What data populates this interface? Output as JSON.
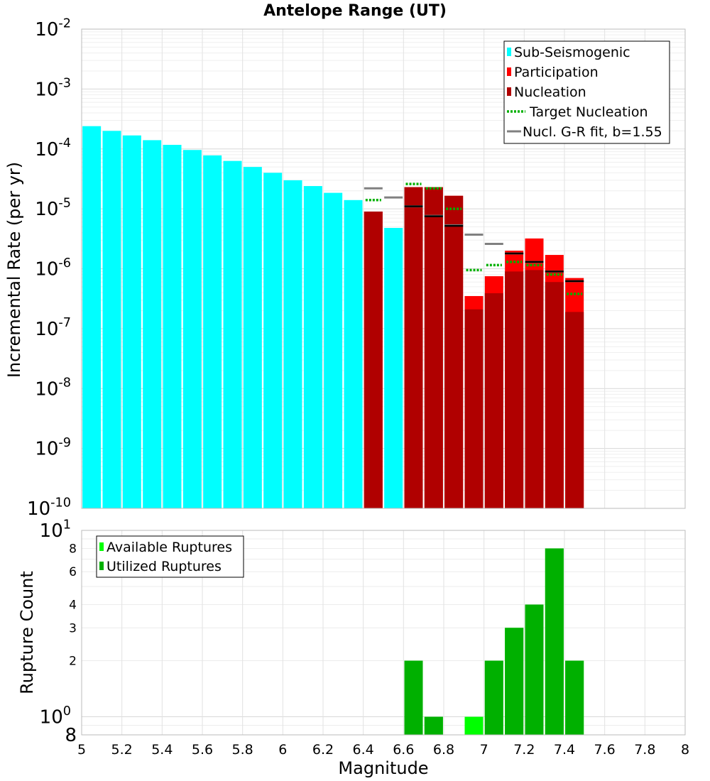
{
  "chart_data": [
    {
      "type": "bar",
      "title": "Antelope Range (UT)",
      "ylabel": "Incremental Rate (per yr)",
      "xlabel": "",
      "xlim": [
        5,
        8
      ],
      "ylim": [
        1e-10,
        0.01
      ],
      "y_scale": "log",
      "grid": true,
      "legend_position": "top-right",
      "y_ticks": [
        {
          "base": "10",
          "exp": "-2"
        },
        {
          "base": "10",
          "exp": "-3"
        },
        {
          "base": "10",
          "exp": "-4"
        },
        {
          "base": "10",
          "exp": "-5"
        },
        {
          "base": "10",
          "exp": "-6"
        },
        {
          "base": "10",
          "exp": "-7"
        },
        {
          "base": "10",
          "exp": "-8"
        },
        {
          "base": "10",
          "exp": "-9"
        },
        {
          "base": "10",
          "exp": "-10"
        }
      ],
      "legend": [
        {
          "label": "Sub-Seismogenic",
          "kind": "bar",
          "color": "#00ffff"
        },
        {
          "label": "Participation",
          "kind": "bar",
          "color": "#ff0000"
        },
        {
          "label": "Nucleation",
          "kind": "bar",
          "color": "#b00000"
        },
        {
          "label": "Target Nucleation",
          "kind": "dotted",
          "color": "#00b000"
        },
        {
          "label": "Nucl. G-R fit, b=1.55",
          "kind": "line",
          "color": "#808080"
        }
      ],
      "series": [
        {
          "name": "Sub-Seismogenic",
          "color": "#00ffff",
          "x": [
            5.05,
            5.15,
            5.25,
            5.35,
            5.45,
            5.55,
            5.65,
            5.75,
            5.85,
            5.95,
            6.05,
            6.15,
            6.25,
            6.35,
            6.55
          ],
          "values": [
            0.00024,
            0.0002,
            0.000168,
            0.00014,
            0.000117,
            9.6e-05,
            7.8e-05,
            6.3e-05,
            5e-05,
            4e-05,
            3e-05,
            2.4e-05,
            1.85e-05,
            1.4e-05,
            4.8e-06
          ]
        },
        {
          "name": "Participation",
          "color": "#ff0000",
          "x": [
            6.45,
            6.65,
            6.75,
            6.85,
            6.95,
            7.05,
            7.15,
            7.25,
            7.35,
            7.45
          ],
          "values": [
            9e-06,
            2.3e-05,
            2.3e-05,
            1.65e-05,
            3.5e-07,
            7.5e-07,
            2e-06,
            3.2e-06,
            1.7e-06,
            7e-07
          ]
        },
        {
          "name": "Nucleation",
          "color": "#b00000",
          "x": [
            6.45,
            6.65,
            6.75,
            6.85,
            6.95,
            7.05,
            7.15,
            7.25,
            7.35,
            7.45
          ],
          "values": [
            9e-06,
            2.3e-05,
            2.3e-05,
            1.65e-05,
            2.1e-07,
            3.9e-07,
            9e-07,
            9.5e-07,
            6e-07,
            1.9e-07
          ]
        },
        {
          "name": "Target Nucleation",
          "color": "#00b000",
          "x": [
            6.45,
            6.65,
            6.75,
            6.85,
            6.95,
            7.05,
            7.15,
            7.25,
            7.35,
            7.45
          ],
          "values": [
            1.4e-05,
            2.6e-05,
            2.2e-05,
            1e-05,
            9.5e-07,
            1.15e-06,
            1.3e-06,
            1.15e-06,
            8e-07,
            3.8e-07
          ]
        },
        {
          "name": "Nucl. G-R fit, b=1.55",
          "color": "#808080",
          "x": [
            6.45,
            6.55,
            6.65,
            6.75,
            6.85,
            6.95,
            7.05,
            7.15,
            7.25,
            7.35,
            7.45
          ],
          "values": [
            2.2e-05,
            1.55e-05,
            1.1e-05,
            7.6e-06,
            5.3e-06,
            3.7e-06,
            2.6e-06,
            1.8e-06,
            1.3e-06,
            9e-07,
            6.2e-07
          ]
        },
        {
          "name": "",
          "color": "#000000",
          "x": [
            6.65,
            6.75,
            6.85,
            7.15,
            7.25,
            7.35,
            7.45
          ],
          "values": [
            1.1e-05,
            7.5e-06,
            5.2e-06,
            1.8e-06,
            1.3e-06,
            9e-07,
            6.2e-07
          ]
        }
      ]
    },
    {
      "type": "bar",
      "title": "",
      "ylabel": "Rupture Count",
      "xlabel": "Magnitude",
      "xlim": [
        5,
        8
      ],
      "ylim": [
        0.8,
        10
      ],
      "y_scale": "log",
      "grid": true,
      "legend_position": "top-left",
      "x_ticks": [
        "5",
        "5.2",
        "5.4",
        "5.6",
        "5.8",
        "6",
        "6.2",
        "6.4",
        "6.6",
        "6.8",
        "7",
        "7.2",
        "7.4",
        "7.6",
        "7.8",
        "8"
      ],
      "y_ticks": [
        {
          "value": 10,
          "base": "10",
          "exp": "1"
        },
        {
          "value": 8,
          "label": "8"
        },
        {
          "value": 6,
          "label": "6"
        },
        {
          "value": 4,
          "label": "4"
        },
        {
          "value": 3,
          "label": "3"
        },
        {
          "value": 2,
          "label": "2"
        },
        {
          "value": 1,
          "base": "10",
          "exp": "0"
        },
        {
          "value": 0.8,
          "label": "8"
        }
      ],
      "legend": [
        {
          "label": "Available Ruptures",
          "kind": "bar",
          "color": "#00ff00"
        },
        {
          "label": "Utilized Ruptures",
          "kind": "bar",
          "color": "#00b000"
        }
      ],
      "series": [
        {
          "name": "Available Ruptures",
          "color": "#00ff00",
          "x": [
            6.65,
            6.75,
            6.95,
            7.05,
            7.15,
            7.25,
            7.35,
            7.45
          ],
          "values": [
            2,
            1,
            1,
            2,
            3,
            4,
            8,
            2
          ]
        },
        {
          "name": "Utilized Ruptures",
          "color": "#00b000",
          "x": [
            6.65,
            6.75,
            7.05,
            7.15,
            7.25,
            7.35,
            7.45
          ],
          "values": [
            2,
            1,
            2,
            3,
            4,
            8,
            2
          ]
        }
      ]
    }
  ]
}
